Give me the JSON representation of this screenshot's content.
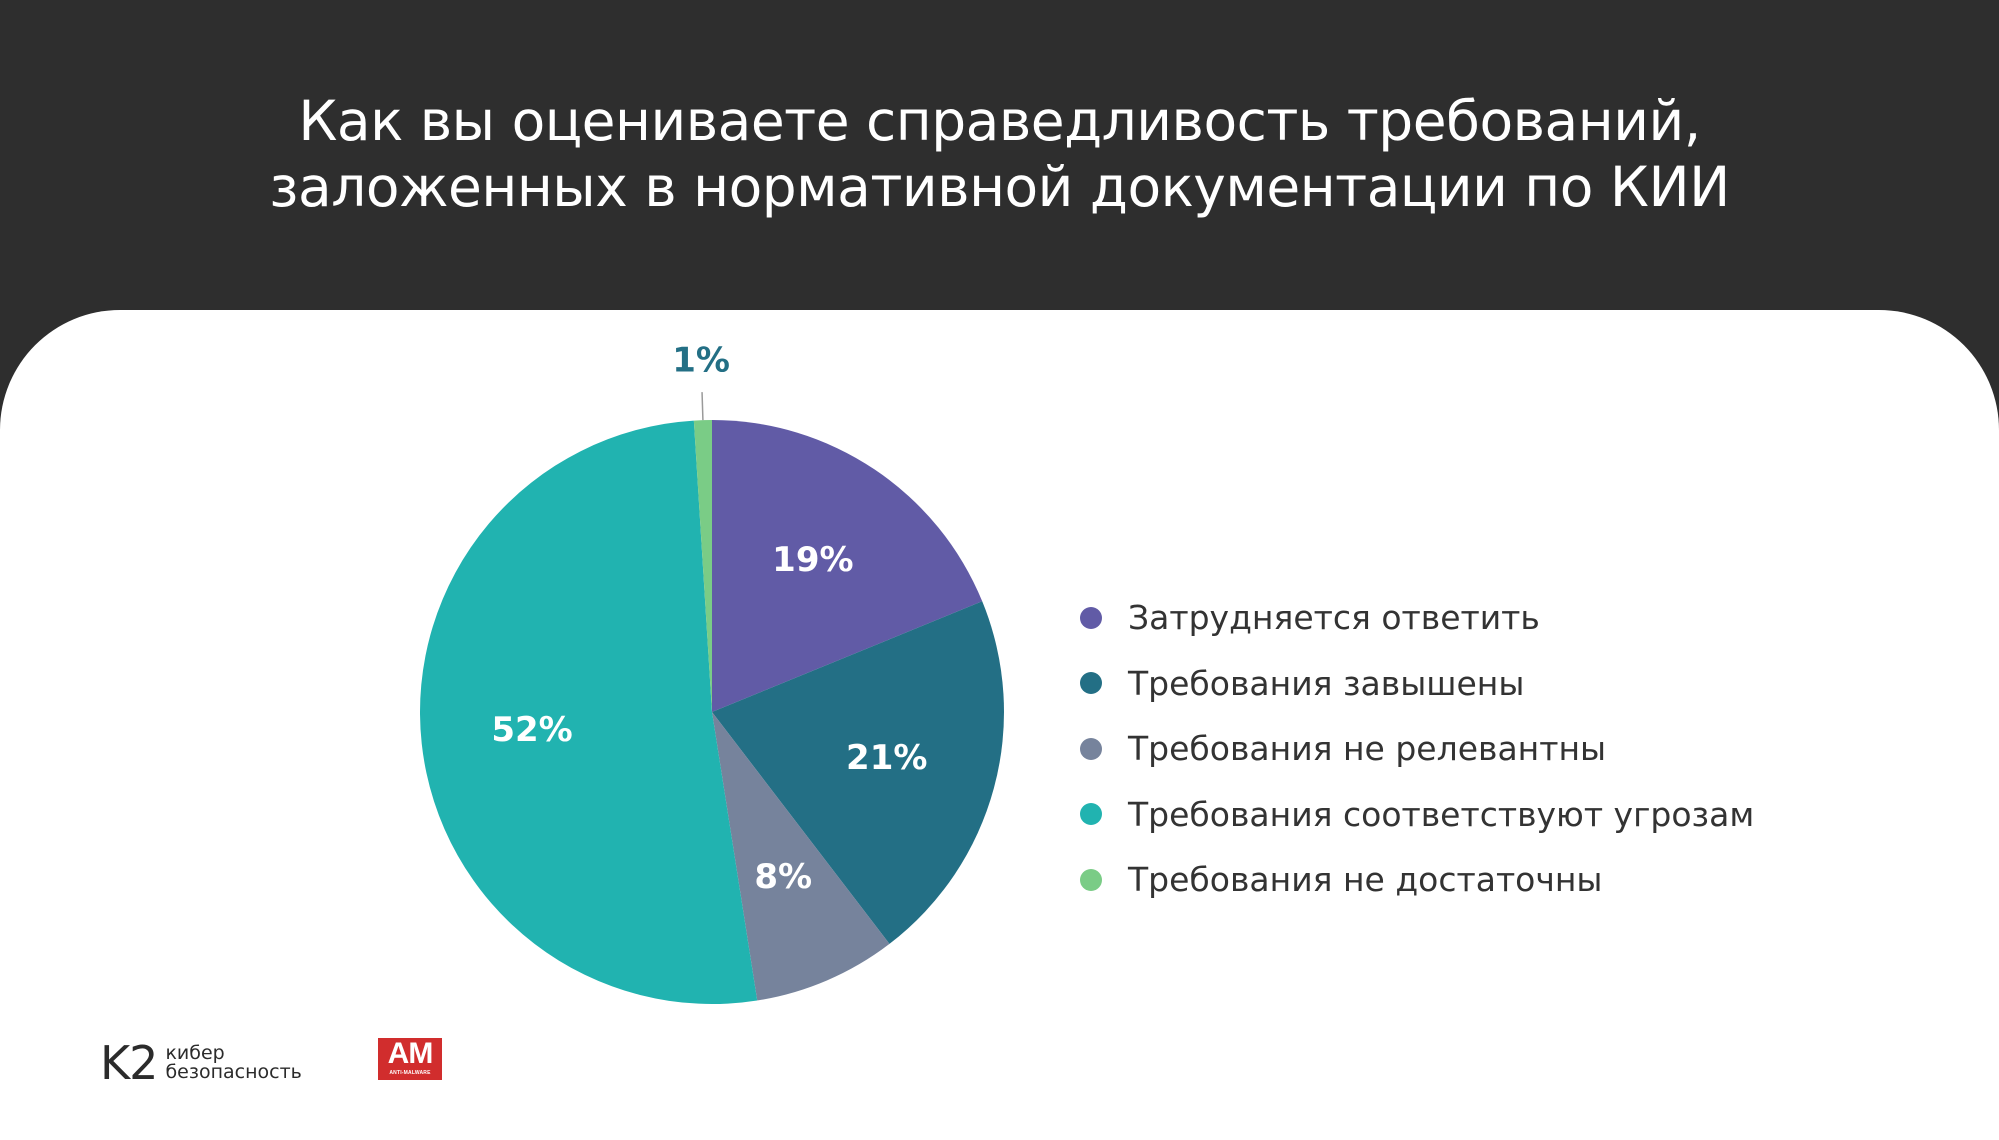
{
  "title_lines": [
    "Как вы оцениваете справедливость требований,",
    "заложенных в нормативной документации по КИИ"
  ],
  "chart_data": {
    "type": "pie",
    "title": "Как вы оцениваете справедливость требований, заложенных в нормативной документации по КИИ",
    "start_angle_deg": 0,
    "direction": "clockwise",
    "legend_position": "right",
    "categories": [
      "Затрудняется ответить",
      "Требования завышены",
      "Требования не релевантны",
      "Требования соответствуют угрозам",
      "Требования не достаточны"
    ],
    "values": [
      19,
      21,
      8,
      52,
      1
    ],
    "labels": [
      "19%",
      "21%",
      "8%",
      "52%",
      "1%"
    ],
    "colors": [
      "#615ba6",
      "#236f85",
      "#76839c",
      "#21b3b0",
      "#7acc86"
    ]
  },
  "logos": {
    "k2": {
      "mark": "K2",
      "line1": "кибер",
      "line2": "безопасность"
    },
    "am": {
      "mark": "AM",
      "sub": "ANTI-MALWARE"
    }
  }
}
